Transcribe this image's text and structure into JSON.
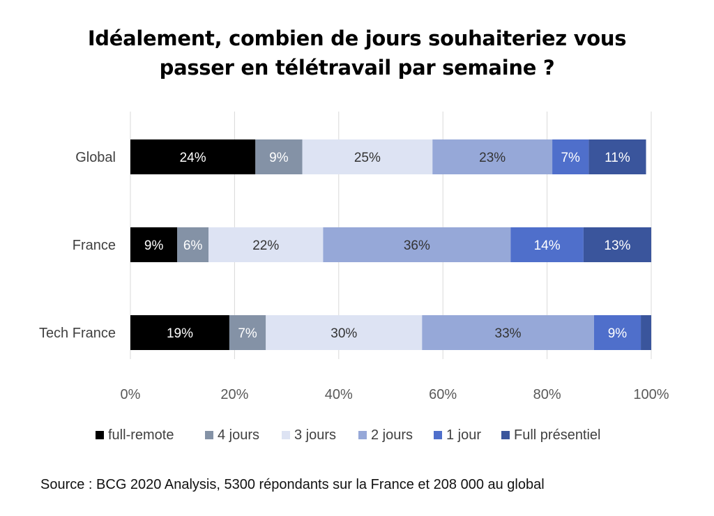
{
  "title": {
    "line1": "Idéalement, combien de jours souhaiteriez vous",
    "line2": "passer en télétravail par semaine ?"
  },
  "source": "Source : BCG 2020 Analysis, 5300 répondants sur la France et 208 000 au global",
  "chart_data": {
    "type": "bar",
    "orientation": "horizontal",
    "stacked": true,
    "normalized": true,
    "categories": [
      "Global",
      "France",
      "Tech France"
    ],
    "xlim": [
      0,
      100
    ],
    "x_ticks": [
      "0%",
      "20%",
      "40%",
      "60%",
      "80%",
      "100%"
    ],
    "grid": "vertical",
    "legend_position": "bottom",
    "series": [
      {
        "name": "full-remote",
        "color": "#000000",
        "label_color": "#ffffff",
        "values": [
          24,
          9,
          19
        ],
        "labels": [
          "24%",
          "9%",
          "19%"
        ]
      },
      {
        "name": "4 jours",
        "color": "#8492a6",
        "label_color": "#ffffff",
        "values": [
          9,
          6,
          7
        ],
        "labels": [
          "9%",
          "6%",
          "7%"
        ]
      },
      {
        "name": "3 jours",
        "color": "#dde3f3",
        "label_color": "#333333",
        "values": [
          25,
          22,
          30
        ],
        "labels": [
          "25%",
          "22%",
          "30%"
        ]
      },
      {
        "name": "2 jours",
        "color": "#96a8d8",
        "label_color": "#333333",
        "values": [
          23,
          36,
          33
        ],
        "labels": [
          "23%",
          "36%",
          "33%"
        ]
      },
      {
        "name": "1 jour",
        "color": "#4f6fcb",
        "label_color": "#ffffff",
        "values": [
          7,
          14,
          9
        ],
        "labels": [
          "7%",
          "14%",
          "9%"
        ]
      },
      {
        "name": "Full présentiel",
        "color": "#3a559c",
        "label_color": "#ffffff",
        "values": [
          11,
          13,
          2
        ],
        "labels": [
          "11%",
          "13%",
          ""
        ]
      }
    ]
  }
}
